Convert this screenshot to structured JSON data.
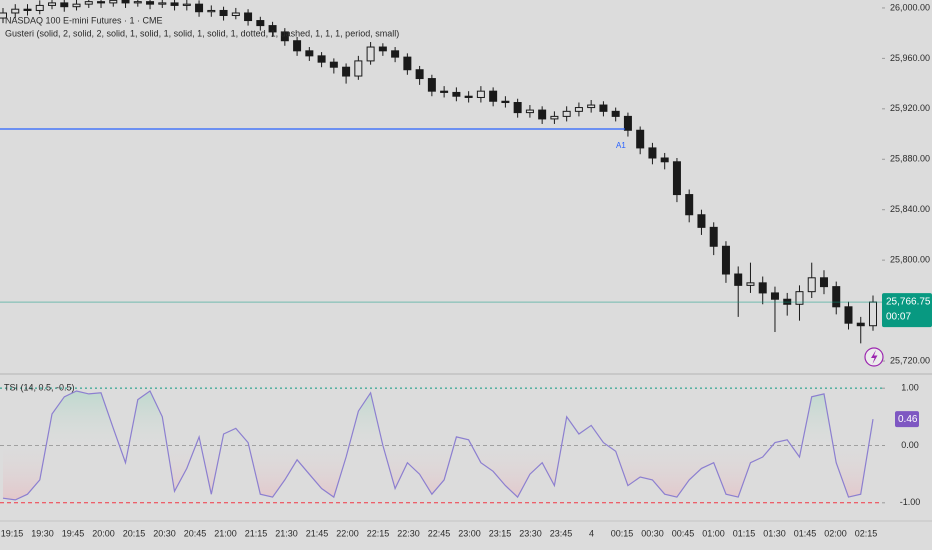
{
  "chart_data": [
    {
      "type": "candlestick",
      "title": "NASDAQ 100 E-mini Futures · 1 · CME",
      "subtitle": "Gusteri (solid, 2, solid, 2, solid, 1, solid, 1, solid, 1, solid, 1, dotted, 1, dashed, 1, 1, 1, period, small)",
      "color": "#1a1a1a",
      "open": [
        25992,
        25996,
        25999,
        25998,
        26002,
        26004,
        26001,
        26003,
        26005,
        26004,
        26006,
        26004,
        26005,
        26003,
        26004,
        26002,
        26003,
        25997,
        25998,
        25994,
        25996,
        25990,
        25986,
        25981,
        25974,
        25966,
        25962,
        25957,
        25953,
        25946,
        25958,
        25969,
        25966,
        25961,
        25951,
        25944,
        25934,
        25933,
        25930,
        25929,
        25934,
        25926,
        25925,
        25917,
        25919,
        25912,
        25914,
        25918,
        25921,
        25923,
        25918,
        25914,
        25903,
        25889,
        25881,
        25878,
        25852,
        25836,
        25826,
        25811,
        25789,
        25780,
        25782,
        25774,
        25769,
        25765,
        25775,
        25786,
        25779,
        25763,
        25750,
        25748
      ],
      "high": [
        26000,
        26003,
        26003,
        26006,
        26008,
        26008,
        26007,
        26009,
        26009,
        26010,
        26009,
        26009,
        26008,
        26008,
        26007,
        26007,
        26006,
        26002,
        26001,
        26000,
        25999,
        25993,
        25989,
        25984,
        25977,
        25969,
        25965,
        25960,
        25956,
        25962,
        25973,
        25972,
        25969,
        25964,
        25954,
        25947,
        25938,
        25937,
        25934,
        25938,
        25937,
        25930,
        25928,
        25923,
        25922,
        25918,
        25922,
        25925,
        25927,
        25926,
        25921,
        25917,
        25906,
        25893,
        25885,
        25881,
        25856,
        25840,
        25830,
        25815,
        25795,
        25798,
        25787,
        25779,
        25774,
        25780,
        25798,
        25792,
        25783,
        25767,
        25755,
        25772
      ],
      "low": [
        25988,
        25992,
        25994,
        25995,
        25999,
        25997,
        25998,
        26000,
        26000,
        26001,
        26000,
        26001,
        25999,
        26000,
        25998,
        25998,
        25993,
        25993,
        25990,
        25991,
        25986,
        25982,
        25977,
        25970,
        25962,
        25958,
        25953,
        25948,
        25940,
        25943,
        25955,
        25962,
        25957,
        25947,
        25939,
        25930,
        25929,
        25926,
        25925,
        25925,
        25922,
        25921,
        25913,
        25913,
        25908,
        25908,
        25910,
        25914,
        25917,
        25914,
        25910,
        25898,
        25884,
        25876,
        25872,
        25846,
        25830,
        25820,
        25804,
        25782,
        25755,
        25774,
        25765,
        25743,
        25756,
        25752,
        25770,
        25773,
        25757,
        25745,
        25734,
        25744
      ],
      "close": [
        25996,
        25999,
        25998,
        26002,
        26004,
        26001,
        26003,
        26005,
        26004,
        26006,
        26004,
        26005,
        26003,
        26004,
        26002,
        26003,
        25997,
        25998,
        25994,
        25996,
        25990,
        25986,
        25981,
        25974,
        25966,
        25962,
        25957,
        25953,
        25946,
        25958,
        25969,
        25966,
        25961,
        25951,
        25944,
        25934,
        25933,
        25930,
        25929,
        25934,
        25926,
        25925,
        25917,
        25919,
        25912,
        25914,
        25918,
        25921,
        25923,
        25918,
        25914,
        25903,
        25889,
        25881,
        25878,
        25852,
        25836,
        25826,
        25811,
        25789,
        25780,
        25782,
        25774,
        25769,
        25765,
        25775,
        25786,
        25779,
        25763,
        25750,
        25748,
        25766.75
      ],
      "ylim": [
        25710.5,
        26006.3
      ],
      "yticks": [
        {
          "value": 25720,
          "label": "25,720.00"
        },
        {
          "value": 25800,
          "label": "25,800.00"
        },
        {
          "value": 25840,
          "label": "25,840.00"
        },
        {
          "value": 25880,
          "label": "25,880.00"
        },
        {
          "value": 25920,
          "label": "25,920.00"
        },
        {
          "value": 25960,
          "label": "25,960.00"
        },
        {
          "value": 26000,
          "label": "26,000.00"
        }
      ],
      "hline": {
        "value": 25904,
        "label": "A1",
        "color": "#2962ff"
      },
      "last_price": {
        "value": 25766.75,
        "label": "25,766.75",
        "countdown": "00:07",
        "color": "#089981"
      }
    },
    {
      "type": "line",
      "title": "TSI (14, 0.5, -0.5)",
      "color": "#8c7fd0",
      "values": [
        -0.92,
        -0.95,
        -0.85,
        -0.6,
        0.55,
        0.85,
        0.95,
        0.9,
        0.92,
        0.3,
        -0.3,
        0.8,
        0.95,
        0.5,
        -0.8,
        -0.4,
        0.15,
        -0.85,
        0.2,
        0.3,
        0.05,
        -0.85,
        -0.9,
        -0.6,
        -0.25,
        -0.5,
        -0.75,
        -0.9,
        -0.2,
        0.6,
        0.92,
        0.0,
        -0.75,
        -0.3,
        -0.5,
        -0.85,
        -0.6,
        0.15,
        0.1,
        -0.3,
        -0.45,
        -0.7,
        -0.9,
        -0.5,
        -0.3,
        -0.7,
        0.5,
        0.2,
        0.35,
        0.05,
        -0.1,
        -0.7,
        -0.55,
        -0.6,
        -0.85,
        -0.9,
        -0.6,
        -0.4,
        -0.3,
        -0.85,
        -0.9,
        -0.3,
        -0.2,
        0.05,
        0.1,
        -0.2,
        0.85,
        0.9,
        -0.3,
        -0.9,
        -0.85,
        0.46
      ],
      "ylim": [
        -1.3,
        1.23
      ],
      "yticks": [
        {
          "value": 1,
          "label": "1.00"
        },
        {
          "value": 0,
          "label": "0.00"
        },
        {
          "value": -1,
          "label": "-1.00"
        }
      ],
      "levels": [
        {
          "value": 1,
          "color": "#089981"
        },
        {
          "value": 0,
          "color": "#9e9e9e"
        },
        {
          "value": -1,
          "color": "#f23645"
        }
      ],
      "last_value": {
        "value": 0.46,
        "label": "0.46",
        "color": "#7e57c2"
      }
    }
  ],
  "time_axis": {
    "labels": [
      "19:15",
      "19:30",
      "19:45",
      "20:00",
      "20:15",
      "20:30",
      "20:45",
      "21:00",
      "21:15",
      "21:30",
      "21:45",
      "22:00",
      "22:15",
      "22:30",
      "22:45",
      "23:00",
      "23:15",
      "23:30",
      "23:45",
      "4",
      "00:15",
      "00:30",
      "00:45",
      "01:00",
      "01:15",
      "01:30",
      "01:45",
      "02:00",
      "02:15"
    ]
  }
}
